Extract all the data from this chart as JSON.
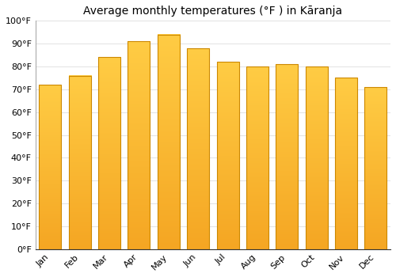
{
  "title": "Average monthly temperatures (°F ) in Kāranja",
  "months": [
    "Jan",
    "Feb",
    "Mar",
    "Apr",
    "May",
    "Jun",
    "Jul",
    "Aug",
    "Sep",
    "Oct",
    "Nov",
    "Dec"
  ],
  "values": [
    72,
    76,
    84,
    91,
    94,
    88,
    82,
    80,
    81,
    80,
    75,
    71
  ],
  "bar_color_top": "#FFCC44",
  "bar_color_bottom": "#F5A623",
  "bar_edge_color": "#CC8800",
  "background_color": "#ffffff",
  "grid_color": "#dddddd",
  "ytick_labels": [
    "0°F",
    "10°F",
    "20°F",
    "30°F",
    "40°F",
    "50°F",
    "60°F",
    "70°F",
    "80°F",
    "90°F",
    "100°F"
  ],
  "ytick_values": [
    0,
    10,
    20,
    30,
    40,
    50,
    60,
    70,
    80,
    90,
    100
  ],
  "ylim": [
    0,
    100
  ],
  "title_fontsize": 10,
  "tick_fontsize": 8
}
